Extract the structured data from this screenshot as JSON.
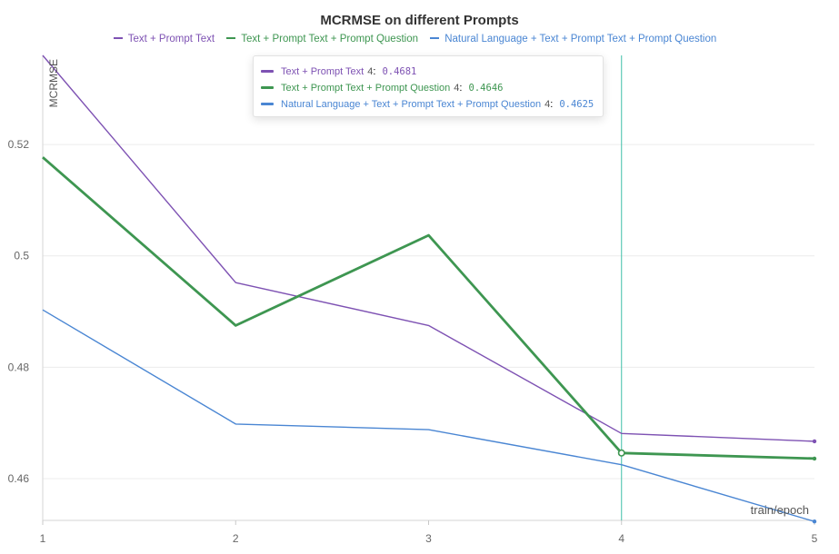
{
  "chart_data": {
    "type": "line",
    "title": "MCRMSE on different Prompts",
    "xlabel": "train/epoch",
    "ylabel": "MCRMSE",
    "x": [
      1,
      2,
      3,
      4,
      5
    ],
    "xlim": [
      1,
      5
    ],
    "ylim": [
      0.4525,
      0.536
    ],
    "yticks": [
      0.46,
      0.48,
      0.5,
      0.52
    ],
    "ytick_labels": [
      "0.46",
      "0.48",
      "0.5",
      "0.52"
    ],
    "xticks": [
      "1",
      "2",
      "3",
      "4",
      "5"
    ],
    "grid": true,
    "legend_position": "top",
    "series": [
      {
        "name": "Text + Prompt Text",
        "color": "#7e52b3",
        "values": [
          0.536,
          0.4952,
          0.4875,
          0.4681,
          0.4667
        ]
      },
      {
        "name": "Text + Prompt Text + Prompt Question",
        "color": "#3e9651",
        "values": [
          0.5177,
          0.4875,
          0.5037,
          0.4646,
          0.4636
        ]
      },
      {
        "name": "Natural Language + Text + Prompt Text + Prompt Question",
        "color": "#4a86d3",
        "values": [
          0.4903,
          0.4698,
          0.4688,
          0.4625,
          0.4523
        ]
      }
    ],
    "hover": {
      "x": 4,
      "label": "4",
      "rows": [
        {
          "name": "Text + Prompt Text",
          "value": "0.4681",
          "color": "#7e52b3"
        },
        {
          "name": "Text + Prompt Text + Prompt Question",
          "value": "0.4646",
          "color": "#3e9651"
        },
        {
          "name": "Natural Language + Text + Prompt Text + Prompt Question",
          "value": "0.4625",
          "color": "#4a86d3"
        }
      ]
    }
  }
}
